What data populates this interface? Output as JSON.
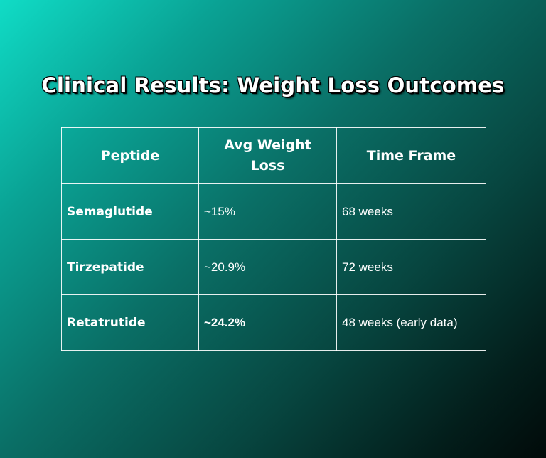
{
  "title": "Clinical Results: Weight Loss Outcomes",
  "table": {
    "headers": [
      "Peptide",
      "Avg Weight Loss",
      "Time Frame"
    ],
    "rows": [
      {
        "peptide": "Semaglutide",
        "avg_weight_loss": "~15%",
        "time_frame": "68 weeks"
      },
      {
        "peptide": "Tirzepatide",
        "avg_weight_loss": "~20.9%",
        "time_frame": "72 weeks"
      },
      {
        "peptide": "Retatrutide",
        "avg_weight_loss": "~24.2%",
        "time_frame": "48 weeks (early data)"
      }
    ]
  },
  "colors": {
    "gradient_start": "#10dcc6",
    "gradient_end": "#010a09",
    "text": "#ffffff"
  }
}
